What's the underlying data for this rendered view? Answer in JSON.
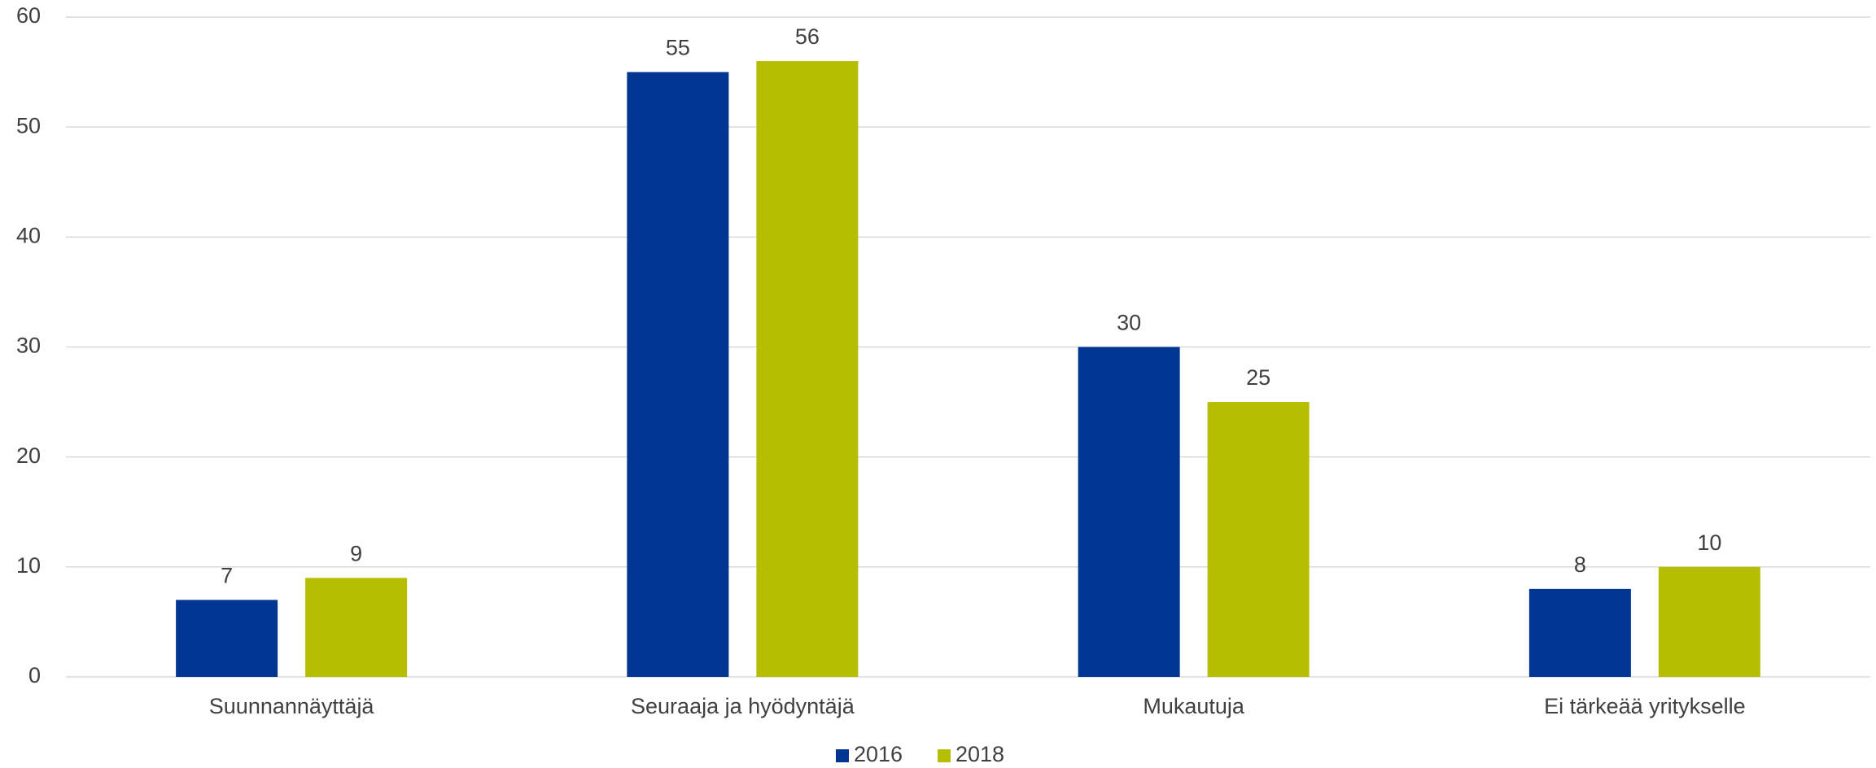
{
  "chart_data": {
    "type": "bar",
    "categories": [
      "Suunnannäyttäjä",
      "Seuraaja ja hyödyntäjä",
      "Mukautuja",
      "Ei tärkeää yritykselle"
    ],
    "series": [
      {
        "name": "2016",
        "color": "#003591",
        "values": [
          7,
          55,
          30,
          8
        ]
      },
      {
        "name": "2018",
        "color": "#b5be00",
        "values": [
          9,
          56,
          25,
          10
        ]
      }
    ],
    "ylim": [
      0,
      60
    ],
    "yticks": [
      0,
      10,
      20,
      30,
      40,
      50,
      60
    ],
    "grid": true,
    "legend": "bottom"
  }
}
